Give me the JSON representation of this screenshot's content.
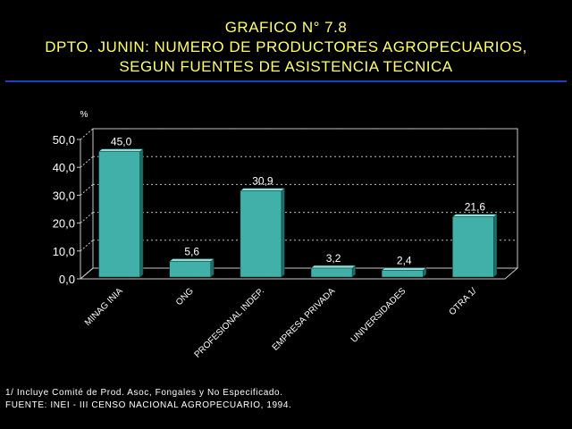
{
  "header": {
    "title_line1": "GRAFICO N° 7.8",
    "title_line2": "DPTO. JUNIN: NUMERO DE PRODUCTORES AGROPECUARIOS,",
    "title_line3": "SEGUN FUENTES DE ASISTENCIA TECNICA"
  },
  "chart_data": {
    "type": "bar",
    "unit_label": "%",
    "categories": [
      "MINAG INIA",
      "ONG",
      "PROFESIONAL INDEP.",
      "EMPRESA PRIVADA",
      "UNIVERSIDADES",
      "OTRA 1/"
    ],
    "values": [
      45.0,
      5.6,
      30.9,
      3.2,
      2.4,
      21.6
    ],
    "data_labels": [
      "45,0",
      "5,6",
      "30,9",
      "3,2",
      "2,4",
      "21,6"
    ],
    "yticks": [
      0,
      10,
      20,
      30,
      40,
      50
    ],
    "ytick_labels": [
      "0,0",
      "10,0",
      "20,0",
      "30,0",
      "40,0",
      "50,0"
    ],
    "ylim": [
      0,
      50
    ],
    "grid": true,
    "colors": {
      "bar": "#40b0a8",
      "bar_side": "#1e6e68",
      "bar_top": "#8fe0d8",
      "grid": "#bfbfbf",
      "axis": "#c8c8c8",
      "title": "#ffff66",
      "divider": "#1f3fbf"
    }
  },
  "footer": {
    "note1": "1/ Incluye Comité de Prod. Asoc, Fongales y No Especificado.",
    "note2": "FUENTE: INEI - III CENSO NACIONAL AGROPECUARIO, 1994."
  }
}
